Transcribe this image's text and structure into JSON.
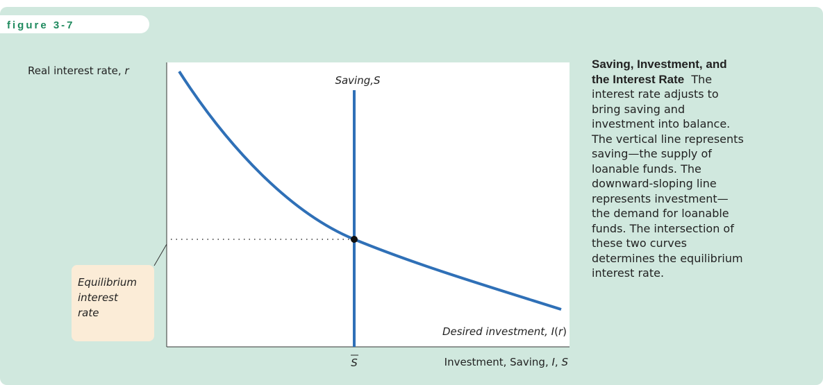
{
  "figure_label": "figure 3-7",
  "diagram": {
    "y_axis_label": [
      "Real interest rate, ",
      "r"
    ],
    "x_axis_label": [
      "Investment, Saving, ",
      "I",
      ", ",
      "S"
    ],
    "saving_label": "Saving,S",
    "investment_label": [
      "Desired investment, ",
      "I",
      "(",
      "r",
      ")"
    ],
    "s_bar_label": "S",
    "callout": [
      "Equilibrium",
      "interest",
      "rate"
    ]
  },
  "caption": {
    "title": "Saving, Investment, and the Interest Rate",
    "body": "The interest rate adjusts to bring saving and investment into balance. The vertical line represents saving—the supply of loanable funds. The downward-sloping line represents investment—the demand for loanable funds. The intersection of these two curves determines the equilibrium interest rate."
  }
}
